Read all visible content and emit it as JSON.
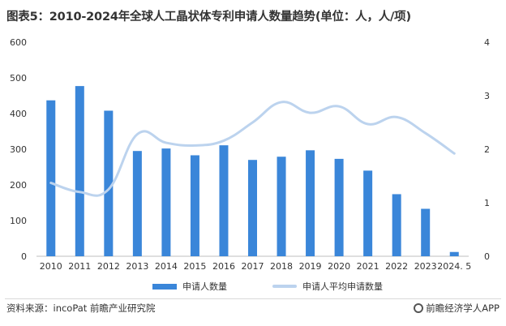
{
  "title": "图表5：2010-2024年全球人工晶状体专利申请人数量趋势(单位：人，人/项)",
  "footer": {
    "source": "资料来源：incoPat 前瞻产业研究院",
    "brand": "前瞻经济学人APP",
    "brand_icon": "logo-icon"
  },
  "colors": {
    "bar": "#3a86d9",
    "line": "#bcd3ee",
    "axis_text": "#333333",
    "axis_line": "#bfbfbf"
  },
  "chart_data": {
    "type": "bar",
    "title": "图表5：2010-2024年全球人工晶状体专利申请人数量趋势(单位：人，人/项)",
    "categories": [
      "2010",
      "2011",
      "2012",
      "2013",
      "2014",
      "2015",
      "2016",
      "2017",
      "2018",
      "2019",
      "2020",
      "2021",
      "2022",
      "2023",
      "2024. 5"
    ],
    "series": [
      {
        "name": "申请人数量",
        "type": "bar",
        "axis": "left",
        "values": [
          437,
          477,
          408,
          295,
          302,
          283,
          311,
          270,
          279,
          297,
          273,
          240,
          174,
          133,
          12
        ]
      },
      {
        "name": "申请人平均申请数量",
        "type": "line",
        "axis": "right",
        "values": [
          1.37,
          1.2,
          1.25,
          2.28,
          2.12,
          2.07,
          2.16,
          2.5,
          2.88,
          2.68,
          2.8,
          2.47,
          2.6,
          2.3,
          1.92
        ]
      }
    ],
    "left_axis": {
      "min": 0,
      "max": 600,
      "ticks": [
        0,
        100,
        200,
        300,
        400,
        500,
        600
      ]
    },
    "right_axis": {
      "min": 0,
      "max": 4,
      "ticks": [
        0,
        1,
        2,
        3,
        4
      ]
    },
    "xlabel": "",
    "ylabel": "",
    "grid": false,
    "legend": "bottom"
  }
}
